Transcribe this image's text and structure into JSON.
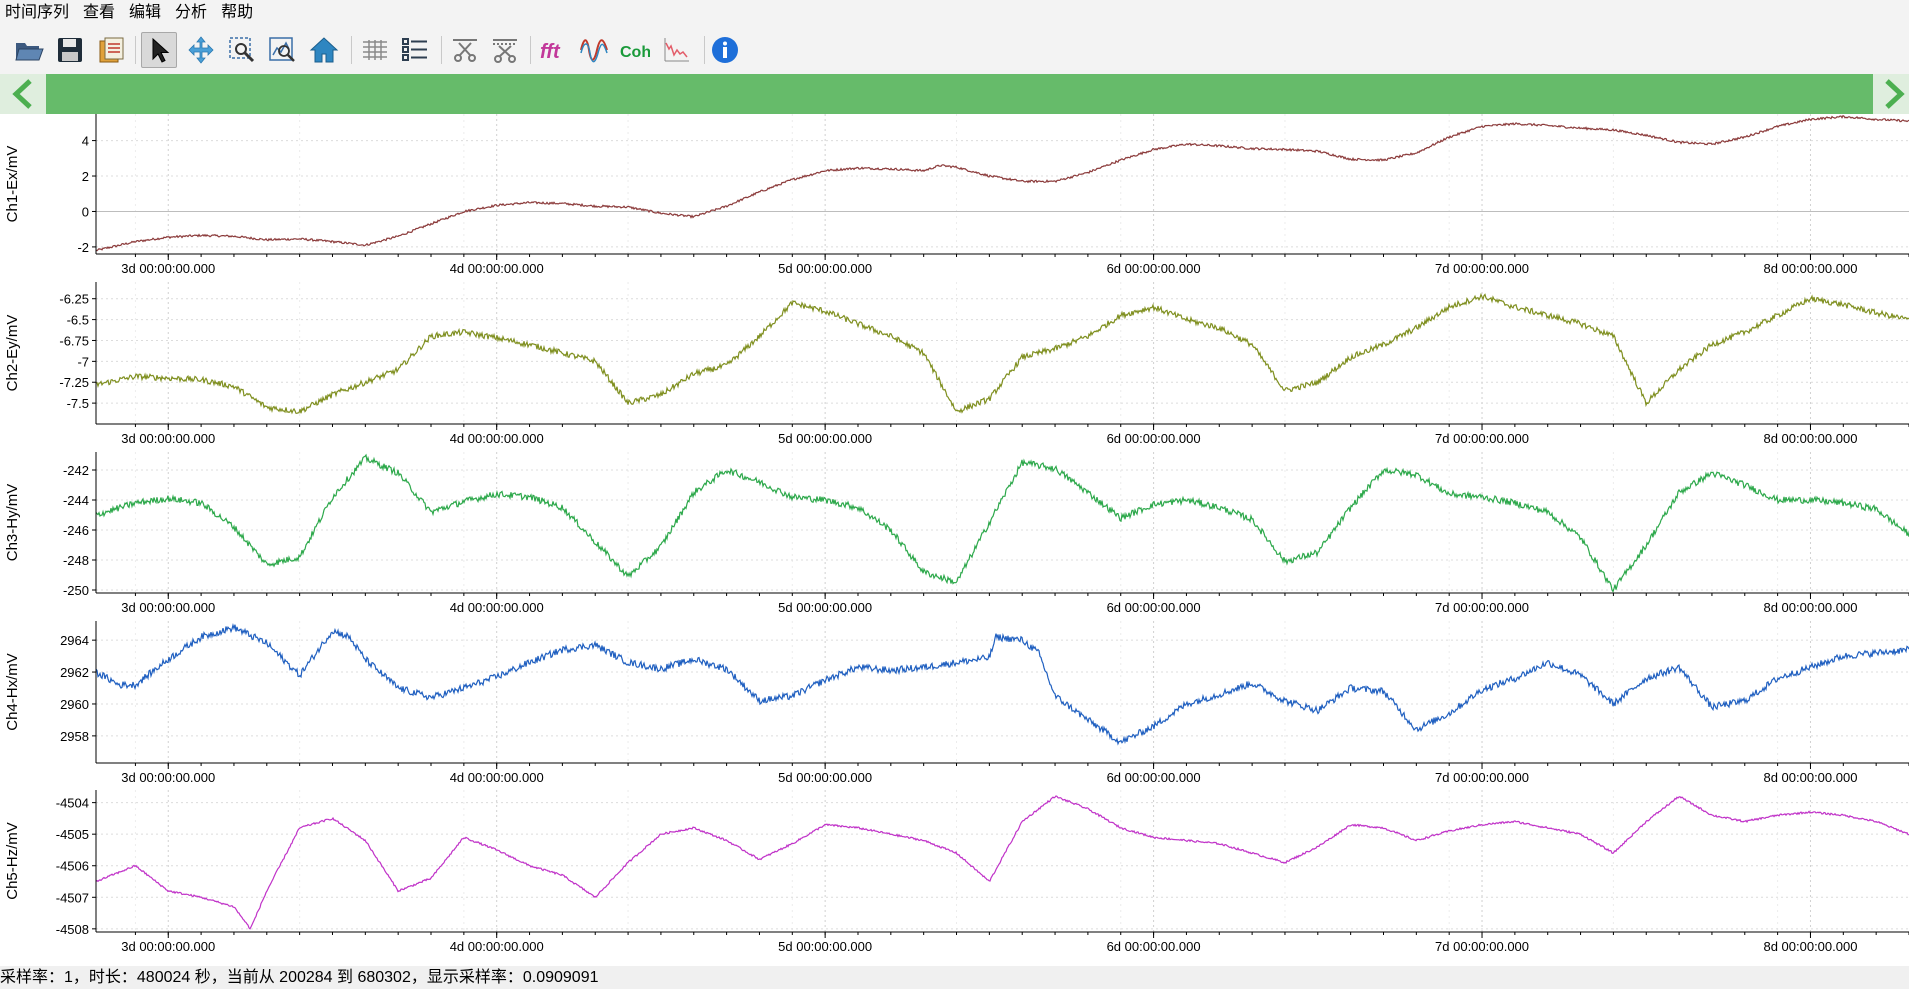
{
  "menu": [
    "时间序列",
    "查看",
    "编辑",
    "分析",
    "帮助"
  ],
  "toolbar": {
    "fft_label": "fft",
    "coh_label": "Coh",
    "buttons": [
      {
        "name": "open-file-icon"
      },
      {
        "name": "save-icon"
      },
      {
        "name": "export-icon"
      },
      {
        "name": "select-pointer-icon",
        "active": true
      },
      {
        "name": "pan-icon"
      },
      {
        "name": "zoom-box-icon"
      },
      {
        "name": "zoom-fit-icon"
      },
      {
        "name": "home-icon"
      },
      {
        "name": "table-grid-icon"
      },
      {
        "name": "channel-list-icon"
      },
      {
        "name": "cut-icon"
      },
      {
        "name": "cut-range-icon"
      },
      {
        "name": "fft-icon"
      },
      {
        "name": "wavelet-icon"
      },
      {
        "name": "coherence-icon"
      },
      {
        "name": "spectrum-icon"
      },
      {
        "name": "info-icon"
      }
    ]
  },
  "scrollbar": {
    "left": "chevron-left-icon",
    "right": "chevron-right-icon"
  },
  "status": "采样率：1，时长：480024 秒，当前从 200284 到 680302，显示采样率：0.0909091",
  "chart_data": {
    "type": "line",
    "x_unit": "day",
    "x_range": [
      2.78,
      8.3
    ],
    "x_tick_labels": [
      "3d 00:00:00.000",
      "4d 00:00:00.000",
      "5d 00:00:00.000",
      "6d 00:00:00.000",
      "7d 00:00:00.000",
      "8d 00:00:00.000"
    ],
    "x_tick_values": [
      3,
      4,
      5,
      6,
      7,
      8
    ],
    "channels": [
      {
        "ylabel": "Ch1-Ex/mV",
        "color": "#8b3a3a",
        "ylim": [
          -2.4,
          5.5
        ],
        "yticks": [
          -2,
          0,
          2,
          4
        ],
        "yticklabels": [
          "-2",
          "0",
          "2",
          "4"
        ],
        "zero_line": true,
        "noise": 0.06,
        "x": [
          2.78,
          2.9,
          3.0,
          3.1,
          3.2,
          3.3,
          3.4,
          3.5,
          3.6,
          3.7,
          3.8,
          3.9,
          4.0,
          4.1,
          4.2,
          4.3,
          4.4,
          4.5,
          4.6,
          4.7,
          4.8,
          4.9,
          5.0,
          5.1,
          5.2,
          5.3,
          5.35,
          5.4,
          5.5,
          5.6,
          5.7,
          5.8,
          5.9,
          6.0,
          6.1,
          6.2,
          6.3,
          6.4,
          6.5,
          6.6,
          6.7,
          6.8,
          6.9,
          7.0,
          7.1,
          7.2,
          7.3,
          7.4,
          7.5,
          7.6,
          7.7,
          7.8,
          7.9,
          8.0,
          8.1,
          8.2,
          8.3
        ],
        "y": [
          -2.2,
          -1.7,
          -1.45,
          -1.35,
          -1.4,
          -1.6,
          -1.55,
          -1.7,
          -1.9,
          -1.4,
          -0.7,
          0.0,
          0.35,
          0.5,
          0.45,
          0.3,
          0.25,
          -0.1,
          -0.3,
          0.3,
          1.1,
          1.8,
          2.3,
          2.45,
          2.4,
          2.3,
          2.6,
          2.5,
          2.0,
          1.7,
          1.7,
          2.2,
          2.9,
          3.5,
          3.8,
          3.7,
          3.55,
          3.5,
          3.4,
          2.95,
          2.9,
          3.3,
          4.2,
          4.8,
          4.95,
          4.85,
          4.7,
          4.6,
          4.3,
          3.9,
          3.8,
          4.2,
          4.8,
          5.2,
          5.35,
          5.2,
          5.1
        ]
      },
      {
        "ylabel": "Ch2-Ey/mV",
        "color": "#7f8f1f",
        "ylim": [
          -7.75,
          -6.05
        ],
        "yticks": [
          -7.5,
          -7.25,
          -7,
          -6.75,
          -6.5,
          -6.25
        ],
        "yticklabels": [
          "-7.5",
          "-7.25",
          "-7",
          "-6.75",
          "-6.5",
          "-6.25"
        ],
        "zero_line": false,
        "noise": 0.035,
        "x": [
          2.78,
          2.9,
          3.0,
          3.1,
          3.2,
          3.3,
          3.4,
          3.5,
          3.6,
          3.7,
          3.8,
          3.9,
          4.0,
          4.1,
          4.2,
          4.3,
          4.4,
          4.5,
          4.6,
          4.7,
          4.8,
          4.9,
          5.0,
          5.1,
          5.2,
          5.3,
          5.4,
          5.5,
          5.6,
          5.7,
          5.8,
          5.9,
          6.0,
          6.1,
          6.2,
          6.3,
          6.4,
          6.5,
          6.6,
          6.7,
          6.8,
          6.9,
          7.0,
          7.1,
          7.2,
          7.3,
          7.4,
          7.5,
          7.6,
          7.7,
          7.8,
          7.9,
          8.0,
          8.1,
          8.2,
          8.3
        ],
        "y": [
          -7.28,
          -7.18,
          -7.2,
          -7.22,
          -7.3,
          -7.55,
          -7.6,
          -7.4,
          -7.25,
          -7.1,
          -6.7,
          -6.65,
          -6.72,
          -6.8,
          -6.9,
          -7.0,
          -7.5,
          -7.4,
          -7.15,
          -7.05,
          -6.7,
          -6.3,
          -6.4,
          -6.55,
          -6.7,
          -6.9,
          -7.6,
          -7.45,
          -6.95,
          -6.85,
          -6.7,
          -6.45,
          -6.35,
          -6.5,
          -6.6,
          -6.8,
          -7.35,
          -7.25,
          -6.95,
          -6.8,
          -6.6,
          -6.35,
          -6.22,
          -6.35,
          -6.45,
          -6.55,
          -6.7,
          -7.5,
          -7.1,
          -6.8,
          -6.65,
          -6.45,
          -6.25,
          -6.32,
          -6.42,
          -6.5
        ]
      },
      {
        "ylabel": "Ch3-Hy/mV",
        "color": "#2ca84a",
        "ylim": [
          -250.2,
          -240.8
        ],
        "yticks": [
          -250,
          -248,
          -246,
          -244,
          -242
        ],
        "yticklabels": [
          "-250",
          "-248",
          "-246",
          "-244",
          "-242"
        ],
        "zero_line": false,
        "noise": 0.22,
        "x": [
          2.78,
          2.9,
          3.0,
          3.1,
          3.2,
          3.3,
          3.4,
          3.5,
          3.6,
          3.7,
          3.8,
          3.9,
          4.0,
          4.1,
          4.2,
          4.3,
          4.4,
          4.5,
          4.6,
          4.7,
          4.8,
          4.9,
          5.0,
          5.1,
          5.2,
          5.3,
          5.4,
          5.5,
          5.6,
          5.7,
          5.8,
          5.9,
          6.0,
          6.1,
          6.2,
          6.3,
          6.4,
          6.5,
          6.6,
          6.7,
          6.8,
          6.9,
          7.0,
          7.1,
          7.2,
          7.3,
          7.4,
          7.5,
          7.6,
          7.7,
          7.8,
          7.9,
          8.0,
          8.1,
          8.2,
          8.3
        ],
        "y": [
          -245,
          -244.2,
          -243.9,
          -244.2,
          -245.8,
          -248.3,
          -247.8,
          -243.8,
          -241.2,
          -242.2,
          -244.8,
          -244.1,
          -243.6,
          -243.8,
          -244.5,
          -246.8,
          -249.1,
          -247.1,
          -243.5,
          -242.0,
          -242.8,
          -243.8,
          -244.0,
          -244.5,
          -246.0,
          -248.8,
          -249.5,
          -245.5,
          -241.5,
          -241.9,
          -243.5,
          -245.2,
          -244.3,
          -244.0,
          -244.5,
          -245.3,
          -248.1,
          -247.5,
          -244.5,
          -242.0,
          -242.3,
          -243.6,
          -243.8,
          -244.2,
          -244.8,
          -246.5,
          -250.0,
          -247.0,
          -243.5,
          -242.2,
          -243.0,
          -244.0,
          -244.0,
          -244.2,
          -244.6,
          -246.3
        ]
      },
      {
        "ylabel": "Ch4-Hx/mV",
        "color": "#1f5fc0",
        "ylim": [
          2956.3,
          2965.2
        ],
        "yticks": [
          2958,
          2960,
          2962,
          2964
        ],
        "yticklabels": [
          "2958",
          "2960",
          "2962",
          "2964"
        ],
        "zero_line": false,
        "noise": 0.22,
        "x": [
          2.78,
          2.85,
          2.9,
          3.0,
          3.1,
          3.2,
          3.3,
          3.4,
          3.5,
          3.55,
          3.6,
          3.7,
          3.8,
          3.9,
          4.0,
          4.1,
          4.2,
          4.3,
          4.4,
          4.5,
          4.6,
          4.7,
          4.8,
          4.9,
          5.0,
          5.1,
          5.2,
          5.3,
          5.4,
          5.5,
          5.52,
          5.6,
          5.65,
          5.7,
          5.8,
          5.9,
          6.0,
          6.1,
          6.2,
          6.3,
          6.4,
          6.5,
          6.6,
          6.7,
          6.8,
          6.9,
          7.0,
          7.1,
          7.2,
          7.3,
          7.4,
          7.5,
          7.6,
          7.7,
          7.8,
          7.9,
          8.0,
          8.1,
          8.2,
          8.3
        ],
        "y": [
          2962,
          2961.2,
          2961.2,
          2962.8,
          2964.2,
          2964.8,
          2963.8,
          2961.8,
          2964.6,
          2964.2,
          2962.8,
          2961.0,
          2960.4,
          2961.0,
          2961.7,
          2962.6,
          2963.4,
          2963.7,
          2962.6,
          2962.2,
          2962.8,
          2962.2,
          2960.2,
          2960.5,
          2961.5,
          2962.3,
          2962.1,
          2962.3,
          2962.6,
          2962.9,
          2964.2,
          2964.0,
          2963.2,
          2960.5,
          2959.0,
          2957.6,
          2958.6,
          2960.0,
          2960.6,
          2961.3,
          2960.2,
          2959.6,
          2961.0,
          2960.8,
          2958.4,
          2959.4,
          2960.9,
          2961.6,
          2962.6,
          2961.8,
          2960.0,
          2961.6,
          2962.3,
          2959.8,
          2960.2,
          2961.6,
          2962.3,
          2963.0,
          2963.2,
          2963.4
        ]
      },
      {
        "ylabel": "Ch5-Hz/mV",
        "color": "#c032c8",
        "ylim": [
          -4508.1,
          -4503.6
        ],
        "yticks": [
          -4508,
          -4507,
          -4506,
          -4505,
          -4504
        ],
        "yticklabels": [
          "-4508",
          "-4507",
          "-4506",
          "-4505",
          "-4504"
        ],
        "zero_line": false,
        "noise": 0.03,
        "x": [
          2.78,
          2.9,
          3.0,
          3.1,
          3.2,
          3.25,
          3.3,
          3.4,
          3.5,
          3.6,
          3.7,
          3.8,
          3.9,
          4.0,
          4.1,
          4.2,
          4.3,
          4.4,
          4.5,
          4.6,
          4.7,
          4.8,
          4.9,
          5.0,
          5.1,
          5.2,
          5.3,
          5.4,
          5.5,
          5.6,
          5.7,
          5.8,
          5.9,
          6.0,
          6.1,
          6.2,
          6.3,
          6.4,
          6.5,
          6.6,
          6.7,
          6.8,
          6.9,
          7.0,
          7.1,
          7.2,
          7.3,
          7.4,
          7.5,
          7.6,
          7.7,
          7.8,
          7.9,
          8.0,
          8.1,
          8.2,
          8.3
        ],
        "y": [
          -4506.5,
          -4506.0,
          -4506.8,
          -4507.0,
          -4507.3,
          -4508.0,
          -4506.8,
          -4504.8,
          -4504.5,
          -4505.2,
          -4506.8,
          -4506.4,
          -4505.1,
          -4505.5,
          -4506.0,
          -4506.3,
          -4507.0,
          -4505.9,
          -4505.0,
          -4504.8,
          -4505.2,
          -4505.8,
          -4505.3,
          -4504.7,
          -4504.8,
          -4505.0,
          -4505.2,
          -4505.6,
          -4506.5,
          -4504.6,
          -4503.8,
          -4504.2,
          -4504.8,
          -4505.1,
          -4505.2,
          -4505.3,
          -4505.6,
          -4505.9,
          -4505.4,
          -4504.7,
          -4504.8,
          -4505.2,
          -4504.9,
          -4504.7,
          -4504.6,
          -4504.8,
          -4505.0,
          -4505.6,
          -4504.6,
          -4503.8,
          -4504.4,
          -4504.6,
          -4504.4,
          -4504.3,
          -4504.4,
          -4504.6,
          -4505.0
        ]
      }
    ]
  }
}
